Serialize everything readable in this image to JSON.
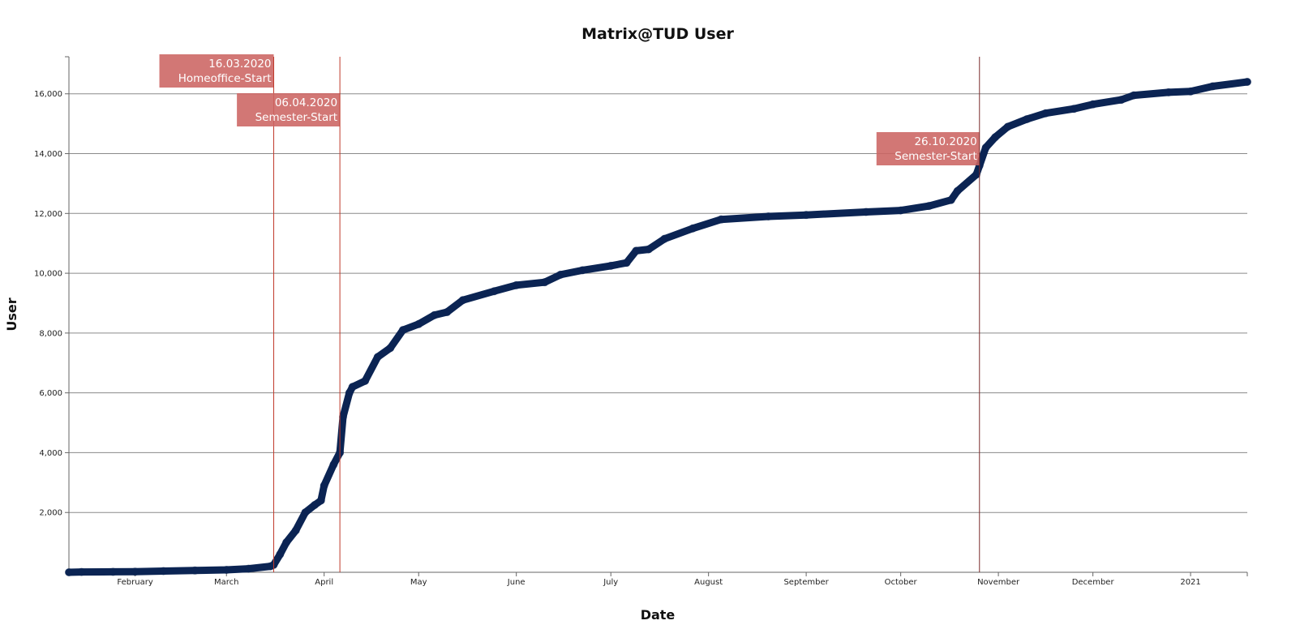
{
  "chart_data": {
    "type": "line",
    "title": "Matrix@TUD User",
    "xlabel": "Date",
    "ylabel": "User",
    "xlim": [
      "2020-01-11",
      "2021-01-19"
    ],
    "ylim": [
      0,
      17240
    ],
    "grid": "horizontal",
    "x_ticks": [
      {
        "date": "2020-02-01",
        "label": "February"
      },
      {
        "date": "2020-03-01",
        "label": "March"
      },
      {
        "date": "2020-04-01",
        "label": "April"
      },
      {
        "date": "2020-05-01",
        "label": "May"
      },
      {
        "date": "2020-06-01",
        "label": "June"
      },
      {
        "date": "2020-07-01",
        "label": "July"
      },
      {
        "date": "2020-08-01",
        "label": "August"
      },
      {
        "date": "2020-09-01",
        "label": "September"
      },
      {
        "date": "2020-10-01",
        "label": "October"
      },
      {
        "date": "2020-11-01",
        "label": "November"
      },
      {
        "date": "2020-12-01",
        "label": "December"
      },
      {
        "date": "2021-01-01",
        "label": "2021"
      }
    ],
    "y_ticks": [
      {
        "value": 2000,
        "label": "2,000"
      },
      {
        "value": 4000,
        "label": "4,000"
      },
      {
        "value": 6000,
        "label": "6,000"
      },
      {
        "value": 8000,
        "label": "8,000"
      },
      {
        "value": 10000,
        "label": "10,000"
      },
      {
        "value": 12000,
        "label": "12,000"
      },
      {
        "value": 14000,
        "label": "14,000"
      },
      {
        "value": 16000,
        "label": "16,000"
      }
    ],
    "series": [
      {
        "color": "#0b2453",
        "points": [
          [
            "2020-01-11",
            0
          ],
          [
            "2020-01-15",
            10
          ],
          [
            "2020-01-25",
            15
          ],
          [
            "2020-02-01",
            20
          ],
          [
            "2020-02-10",
            40
          ],
          [
            "2020-02-20",
            60
          ],
          [
            "2020-03-01",
            80
          ],
          [
            "2020-03-08",
            120
          ],
          [
            "2020-03-15",
            200
          ],
          [
            "2020-03-16",
            250
          ],
          [
            "2020-03-18",
            600
          ],
          [
            "2020-03-20",
            1000
          ],
          [
            "2020-03-23",
            1400
          ],
          [
            "2020-03-26",
            2000
          ],
          [
            "2020-03-29",
            2250
          ],
          [
            "2020-03-31",
            2400
          ],
          [
            "2020-04-01",
            2900
          ],
          [
            "2020-04-04",
            3600
          ],
          [
            "2020-04-06",
            4000
          ],
          [
            "2020-04-07",
            5200
          ],
          [
            "2020-04-09",
            6000
          ],
          [
            "2020-04-10",
            6200
          ],
          [
            "2020-04-14",
            6400
          ],
          [
            "2020-04-18",
            7200
          ],
          [
            "2020-04-22",
            7500
          ],
          [
            "2020-04-26",
            8100
          ],
          [
            "2020-05-01",
            8300
          ],
          [
            "2020-05-06",
            8600
          ],
          [
            "2020-05-10",
            8700
          ],
          [
            "2020-05-15",
            9100
          ],
          [
            "2020-05-25",
            9400
          ],
          [
            "2020-06-01",
            9600
          ],
          [
            "2020-06-10",
            9700
          ],
          [
            "2020-06-15",
            9950
          ],
          [
            "2020-06-22",
            10100
          ],
          [
            "2020-07-01",
            10250
          ],
          [
            "2020-07-06",
            10350
          ],
          [
            "2020-07-09",
            10750
          ],
          [
            "2020-07-13",
            10800
          ],
          [
            "2020-07-18",
            11150
          ],
          [
            "2020-07-27",
            11500
          ],
          [
            "2020-08-05",
            11800
          ],
          [
            "2020-08-20",
            11900
          ],
          [
            "2020-09-01",
            11950
          ],
          [
            "2020-09-20",
            12050
          ],
          [
            "2020-10-01",
            12100
          ],
          [
            "2020-10-10",
            12250
          ],
          [
            "2020-10-17",
            12450
          ],
          [
            "2020-10-19",
            12750
          ],
          [
            "2020-10-25",
            13300
          ],
          [
            "2020-10-26",
            13600
          ],
          [
            "2020-10-28",
            14200
          ],
          [
            "2020-10-31",
            14550
          ],
          [
            "2020-11-04",
            14900
          ],
          [
            "2020-11-10",
            15150
          ],
          [
            "2020-11-16",
            15350
          ],
          [
            "2020-11-25",
            15500
          ],
          [
            "2020-12-01",
            15650
          ],
          [
            "2020-12-10",
            15800
          ],
          [
            "2020-12-14",
            15950
          ],
          [
            "2020-12-25",
            16050
          ],
          [
            "2021-01-01",
            16080
          ],
          [
            "2021-01-08",
            16250
          ],
          [
            "2021-01-19",
            16400
          ]
        ]
      }
    ],
    "annotations": [
      {
        "date": "2020-03-16",
        "line1": "16.03.2020",
        "line2": "Homeoffice-Start",
        "color": "#c0392b"
      },
      {
        "date": "2020-04-06",
        "line1": "06.04.2020",
        "line2": "Semester-Start",
        "color": "#c0392b"
      },
      {
        "date": "2020-10-26",
        "line1": "26.10.2020",
        "line2": "Semester-Start",
        "color": "#7a2a2a"
      }
    ],
    "annotation_box_color": "#cc6462"
  }
}
